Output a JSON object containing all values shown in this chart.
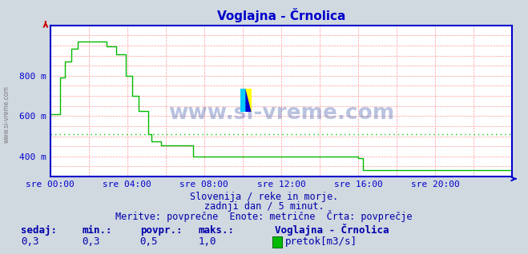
{
  "title": "Voglajna - Črnolica",
  "bg_color": "#d0d8e0",
  "plot_bg_color": "#ffffff",
  "grid_color": "#ff9999",
  "line_color": "#00bb00",
  "avg_line_color": "#00cc00",
  "axis_color": "#0000cc",
  "title_color": "#0000cc",
  "ylim": [
    300,
    1050
  ],
  "yticks": [
    400,
    600,
    800
  ],
  "ytick_labels": [
    "400 m",
    "600 m",
    "800 m"
  ],
  "xtick_labels": [
    "sre 00:00",
    "sre 04:00",
    "sre 08:00",
    "sre 12:00",
    "sre 16:00",
    "sre 20:00"
  ],
  "xtick_positions": [
    0,
    48,
    96,
    144,
    192,
    240
  ],
  "avg_value": 510,
  "watermark": "www.si-vreme.com",
  "footer_line1": "Slovenija / reke in morje.",
  "footer_line2": "zadnji dan / 5 minut.",
  "footer_line3": "Meritve: povprečne  Enote: metrične  Črta: povprečje",
  "legend_title": "Voglajna - Črnolica",
  "stat_labels": [
    "sedaj:",
    "min.:",
    "povpr.:",
    "maks.:"
  ],
  "stat_values": [
    "0,3",
    "0,3",
    "0,5",
    "1,0"
  ],
  "legend_label": "pretok[m3/s]",
  "total_points": 288,
  "data_points": [
    [
      0,
      610
    ],
    [
      5,
      610
    ],
    [
      6,
      790
    ],
    [
      9,
      870
    ],
    [
      11,
      870
    ],
    [
      13,
      935
    ],
    [
      17,
      970
    ],
    [
      23,
      970
    ],
    [
      29,
      970
    ],
    [
      35,
      945
    ],
    [
      39,
      945
    ],
    [
      41,
      905
    ],
    [
      45,
      905
    ],
    [
      47,
      800
    ],
    [
      49,
      800
    ],
    [
      51,
      700
    ],
    [
      53,
      700
    ],
    [
      55,
      625
    ],
    [
      57,
      625
    ],
    [
      59,
      625
    ],
    [
      61,
      510
    ],
    [
      63,
      475
    ],
    [
      65,
      475
    ],
    [
      67,
      475
    ],
    [
      69,
      455
    ],
    [
      71,
      455
    ],
    [
      79,
      455
    ],
    [
      89,
      400
    ],
    [
      95,
      400
    ],
    [
      143,
      400
    ],
    [
      191,
      400
    ],
    [
      192,
      390
    ],
    [
      194,
      390
    ],
    [
      195,
      330
    ],
    [
      287,
      330
    ],
    [
      288,
      330
    ]
  ],
  "title_fontsize": 11,
  "tick_fontsize": 8,
  "footer_fontsize": 8.5,
  "stat_fontsize": 9
}
